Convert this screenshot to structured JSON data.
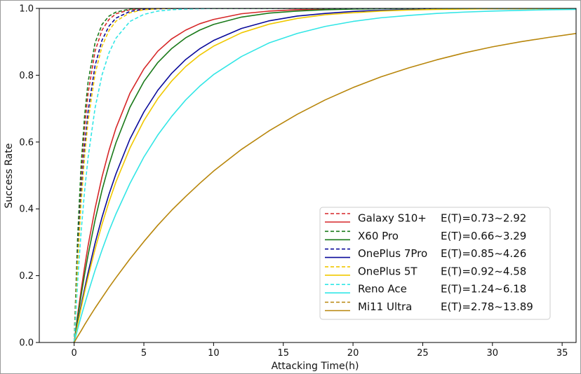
{
  "chart_data": {
    "type": "line",
    "xlabel": "Attacking Time(h)",
    "ylabel": "Success Rate",
    "xlim": [
      -2.5,
      36
    ],
    "ylim": [
      0,
      1
    ],
    "xticks": [
      0,
      5,
      10,
      15,
      20,
      25,
      30,
      35
    ],
    "yticks": [
      0.0,
      0.2,
      0.4,
      0.6,
      0.8,
      1.0
    ],
    "grid": false,
    "legend_position": "lower-right",
    "x": [
      0,
      0.25,
      0.5,
      0.75,
      1,
      1.5,
      2,
      2.5,
      3,
      4,
      5,
      6,
      7,
      8,
      9,
      10,
      12,
      14,
      16,
      18,
      20,
      22,
      24,
      26,
      28,
      30,
      32,
      34,
      36
    ],
    "series": [
      {
        "name": "Galaxy S10+",
        "label": "Galaxy S10+",
        "expr": "E(T)=0.73~2.92",
        "color": "#d62728",
        "dashed_values": [
          0.0,
          0.29,
          0.496,
          0.642,
          0.746,
          0.872,
          0.935,
          0.967,
          0.984,
          0.996,
          0.999,
          1.0,
          1.0,
          1.0,
          1.0,
          1.0,
          1.0,
          1.0,
          1.0,
          1.0,
          1.0,
          1.0,
          1.0,
          1.0,
          1.0,
          1.0,
          1.0,
          1.0,
          1.0
        ],
        "solid_values": [
          0.0,
          0.082,
          0.157,
          0.226,
          0.29,
          0.401,
          0.496,
          0.575,
          0.642,
          0.746,
          0.819,
          0.872,
          0.909,
          0.935,
          0.954,
          0.967,
          0.984,
          0.992,
          0.996,
          0.998,
          0.999,
          1.0,
          1.0,
          1.0,
          1.0,
          1.0,
          1.0,
          1.0,
          1.0
        ]
      },
      {
        "name": "X60 Pro",
        "label": "X60 Pro",
        "expr": "E(T)=0.66~3.29",
        "color": "#1a7a1a",
        "dashed_values": [
          0.0,
          0.315,
          0.531,
          0.679,
          0.78,
          0.897,
          0.952,
          0.977,
          0.989,
          0.998,
          1.0,
          1.0,
          1.0,
          1.0,
          1.0,
          1.0,
          1.0,
          1.0,
          1.0,
          1.0,
          1.0,
          1.0,
          1.0,
          1.0,
          1.0,
          1.0,
          1.0,
          1.0,
          1.0
        ],
        "solid_values": [
          0.0,
          0.073,
          0.141,
          0.204,
          0.262,
          0.366,
          0.456,
          0.532,
          0.598,
          0.704,
          0.781,
          0.838,
          0.88,
          0.912,
          0.935,
          0.952,
          0.974,
          0.986,
          0.992,
          0.996,
          0.998,
          0.999,
          0.999,
          1.0,
          1.0,
          1.0,
          1.0,
          1.0,
          1.0
        ]
      },
      {
        "name": "OnePlus 7Pro",
        "label": "OnePlus 7Pro",
        "expr": "E(T)=0.85~4.26",
        "color": "#0a0a9a",
        "dashed_values": [
          0.0,
          0.255,
          0.445,
          0.586,
          0.692,
          0.829,
          0.905,
          0.947,
          0.971,
          0.991,
          0.997,
          0.999,
          1.0,
          1.0,
          1.0,
          1.0,
          1.0,
          1.0,
          1.0,
          1.0,
          1.0,
          1.0,
          1.0,
          1.0,
          1.0,
          1.0,
          1.0,
          1.0,
          1.0
        ],
        "solid_values": [
          0.0,
          0.057,
          0.111,
          0.161,
          0.209,
          0.297,
          0.375,
          0.444,
          0.505,
          0.609,
          0.69,
          0.755,
          0.806,
          0.847,
          0.879,
          0.904,
          0.94,
          0.963,
          0.977,
          0.985,
          0.991,
          0.994,
          0.996,
          0.998,
          0.999,
          0.999,
          0.999,
          1.0,
          1.0
        ]
      },
      {
        "name": "OnePlus 5T",
        "label": "OnePlus 5T",
        "expr": "E(T)=0.92~4.58",
        "color": "#f0c800",
        "dashed_values": [
          0.0,
          0.238,
          0.419,
          0.557,
          0.663,
          0.804,
          0.887,
          0.934,
          0.962,
          0.987,
          0.996,
          0.999,
          1.0,
          1.0,
          1.0,
          1.0,
          1.0,
          1.0,
          1.0,
          1.0,
          1.0,
          1.0,
          1.0,
          1.0,
          1.0,
          1.0,
          1.0,
          1.0,
          1.0
        ],
        "solid_values": [
          0.0,
          0.053,
          0.103,
          0.151,
          0.196,
          0.279,
          0.354,
          0.421,
          0.481,
          0.582,
          0.664,
          0.73,
          0.783,
          0.826,
          0.86,
          0.887,
          0.927,
          0.953,
          0.97,
          0.981,
          0.987,
          0.992,
          0.995,
          0.997,
          0.998,
          0.999,
          0.999,
          0.999,
          1.0
        ]
      },
      {
        "name": "Reno Ace",
        "label": "Reno Ace",
        "expr": "E(T)=1.24~6.18",
        "color": "#33e6e6",
        "dashed_values": [
          0.0,
          0.183,
          0.332,
          0.454,
          0.554,
          0.702,
          0.801,
          0.867,
          0.911,
          0.961,
          0.982,
          0.992,
          0.996,
          0.998,
          0.999,
          1.0,
          1.0,
          1.0,
          1.0,
          1.0,
          1.0,
          1.0,
          1.0,
          1.0,
          1.0,
          1.0,
          1.0,
          1.0,
          1.0
        ],
        "solid_values": [
          0.0,
          0.04,
          0.078,
          0.114,
          0.149,
          0.216,
          0.277,
          0.334,
          0.385,
          0.476,
          0.555,
          0.621,
          0.677,
          0.726,
          0.767,
          0.802,
          0.856,
          0.897,
          0.925,
          0.946,
          0.961,
          0.972,
          0.979,
          0.985,
          0.989,
          0.992,
          0.994,
          0.996,
          0.997
        ]
      },
      {
        "name": "Mi11 Ultra",
        "label": "Mi11 Ultra",
        "expr": "E(T)=2.78~13.89",
        "color": "#b8860b",
        "dashed_values": [],
        "solid_values": [
          0.0,
          0.018,
          0.035,
          0.053,
          0.07,
          0.103,
          0.134,
          0.165,
          0.194,
          0.25,
          0.302,
          0.351,
          0.396,
          0.437,
          0.476,
          0.513,
          0.578,
          0.634,
          0.683,
          0.726,
          0.763,
          0.795,
          0.822,
          0.846,
          0.867,
          0.885,
          0.9,
          0.913,
          0.925
        ]
      }
    ]
  }
}
